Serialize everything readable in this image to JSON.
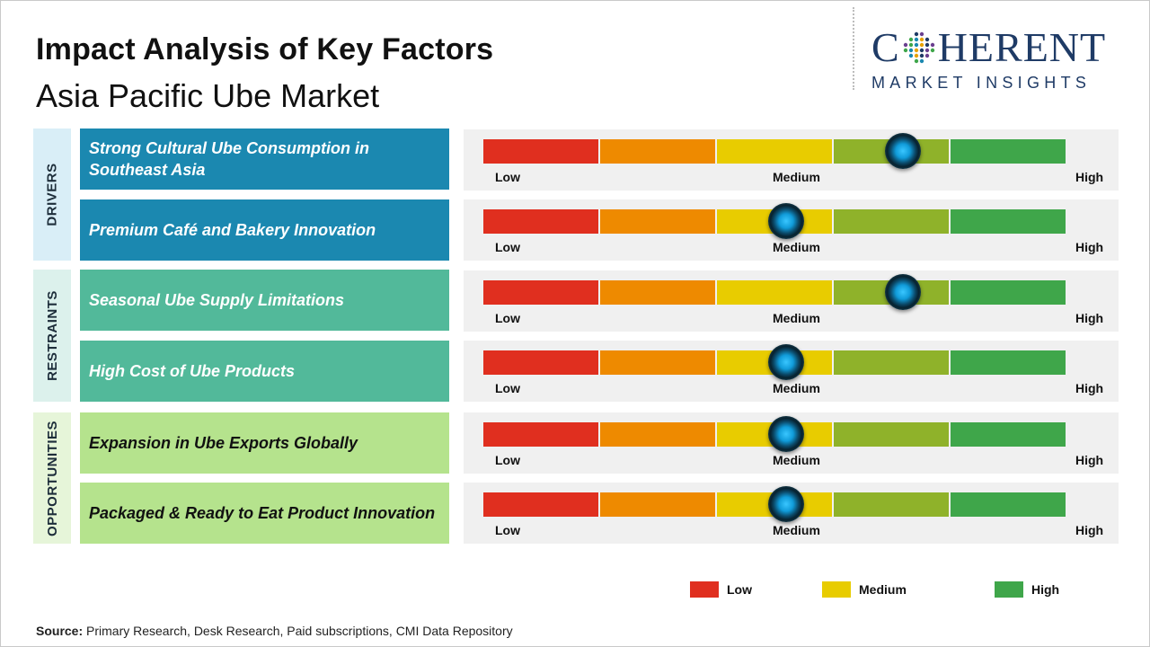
{
  "header": {
    "title": "Impact Analysis of Key Factors",
    "subtitle": "Asia Pacific Ube Market"
  },
  "logo": {
    "line1_a": "C",
    "line1_b": "HERENT",
    "line2": "MARKET INSIGHTS"
  },
  "colors": {
    "low": "#e02f1f",
    "low_medium": "#ee8a00",
    "medium": "#e8cc00",
    "medium_high": "#8fb22a",
    "high": "#3fa64a",
    "drivers_tab": "#d9eef7",
    "drivers_row": "#1b88b0",
    "restraints_tab": "#dcf1ec",
    "restraints_row": "#52b99a",
    "opportunities_tab": "#e6f5d9",
    "opportunities_row": "#b5e38d"
  },
  "scale_labels": {
    "low": "Low",
    "medium": "Medium",
    "high": "High"
  },
  "chart_data": {
    "type": "gauge",
    "scale": [
      "Low",
      "Medium",
      "High"
    ],
    "scale_note": "position from 0 (Low) to 1 (High)",
    "groups": [
      {
        "name": "DRIVERS",
        "factors": [
          {
            "label": "Strong Cultural Ube Consumption in Southeast Asia",
            "impact": 0.72
          },
          {
            "label": "Premium Café and Bakery Innovation",
            "impact": 0.52
          }
        ]
      },
      {
        "name": "RESTRAINTS",
        "factors": [
          {
            "label": "Seasonal Ube Supply Limitations",
            "impact": 0.72
          },
          {
            "label": "High Cost of Ube Products",
            "impact": 0.52
          }
        ]
      },
      {
        "name": "OPPORTUNITIES",
        "factors": [
          {
            "label": "Expansion in Ube Exports Globally",
            "impact": 0.52
          },
          {
            "label": "Packaged & Ready to Eat Product Innovation",
            "impact": 0.52
          }
        ]
      }
    ],
    "legend": [
      {
        "label": "Low",
        "color": "#e02f1f"
      },
      {
        "label": "Medium",
        "color": "#e8cc00"
      },
      {
        "label": "High",
        "color": "#3fa64a"
      }
    ]
  },
  "source": {
    "label": "Source:",
    "text": " Primary Research, Desk Research, Paid subscriptions, CMI Data Repository"
  }
}
